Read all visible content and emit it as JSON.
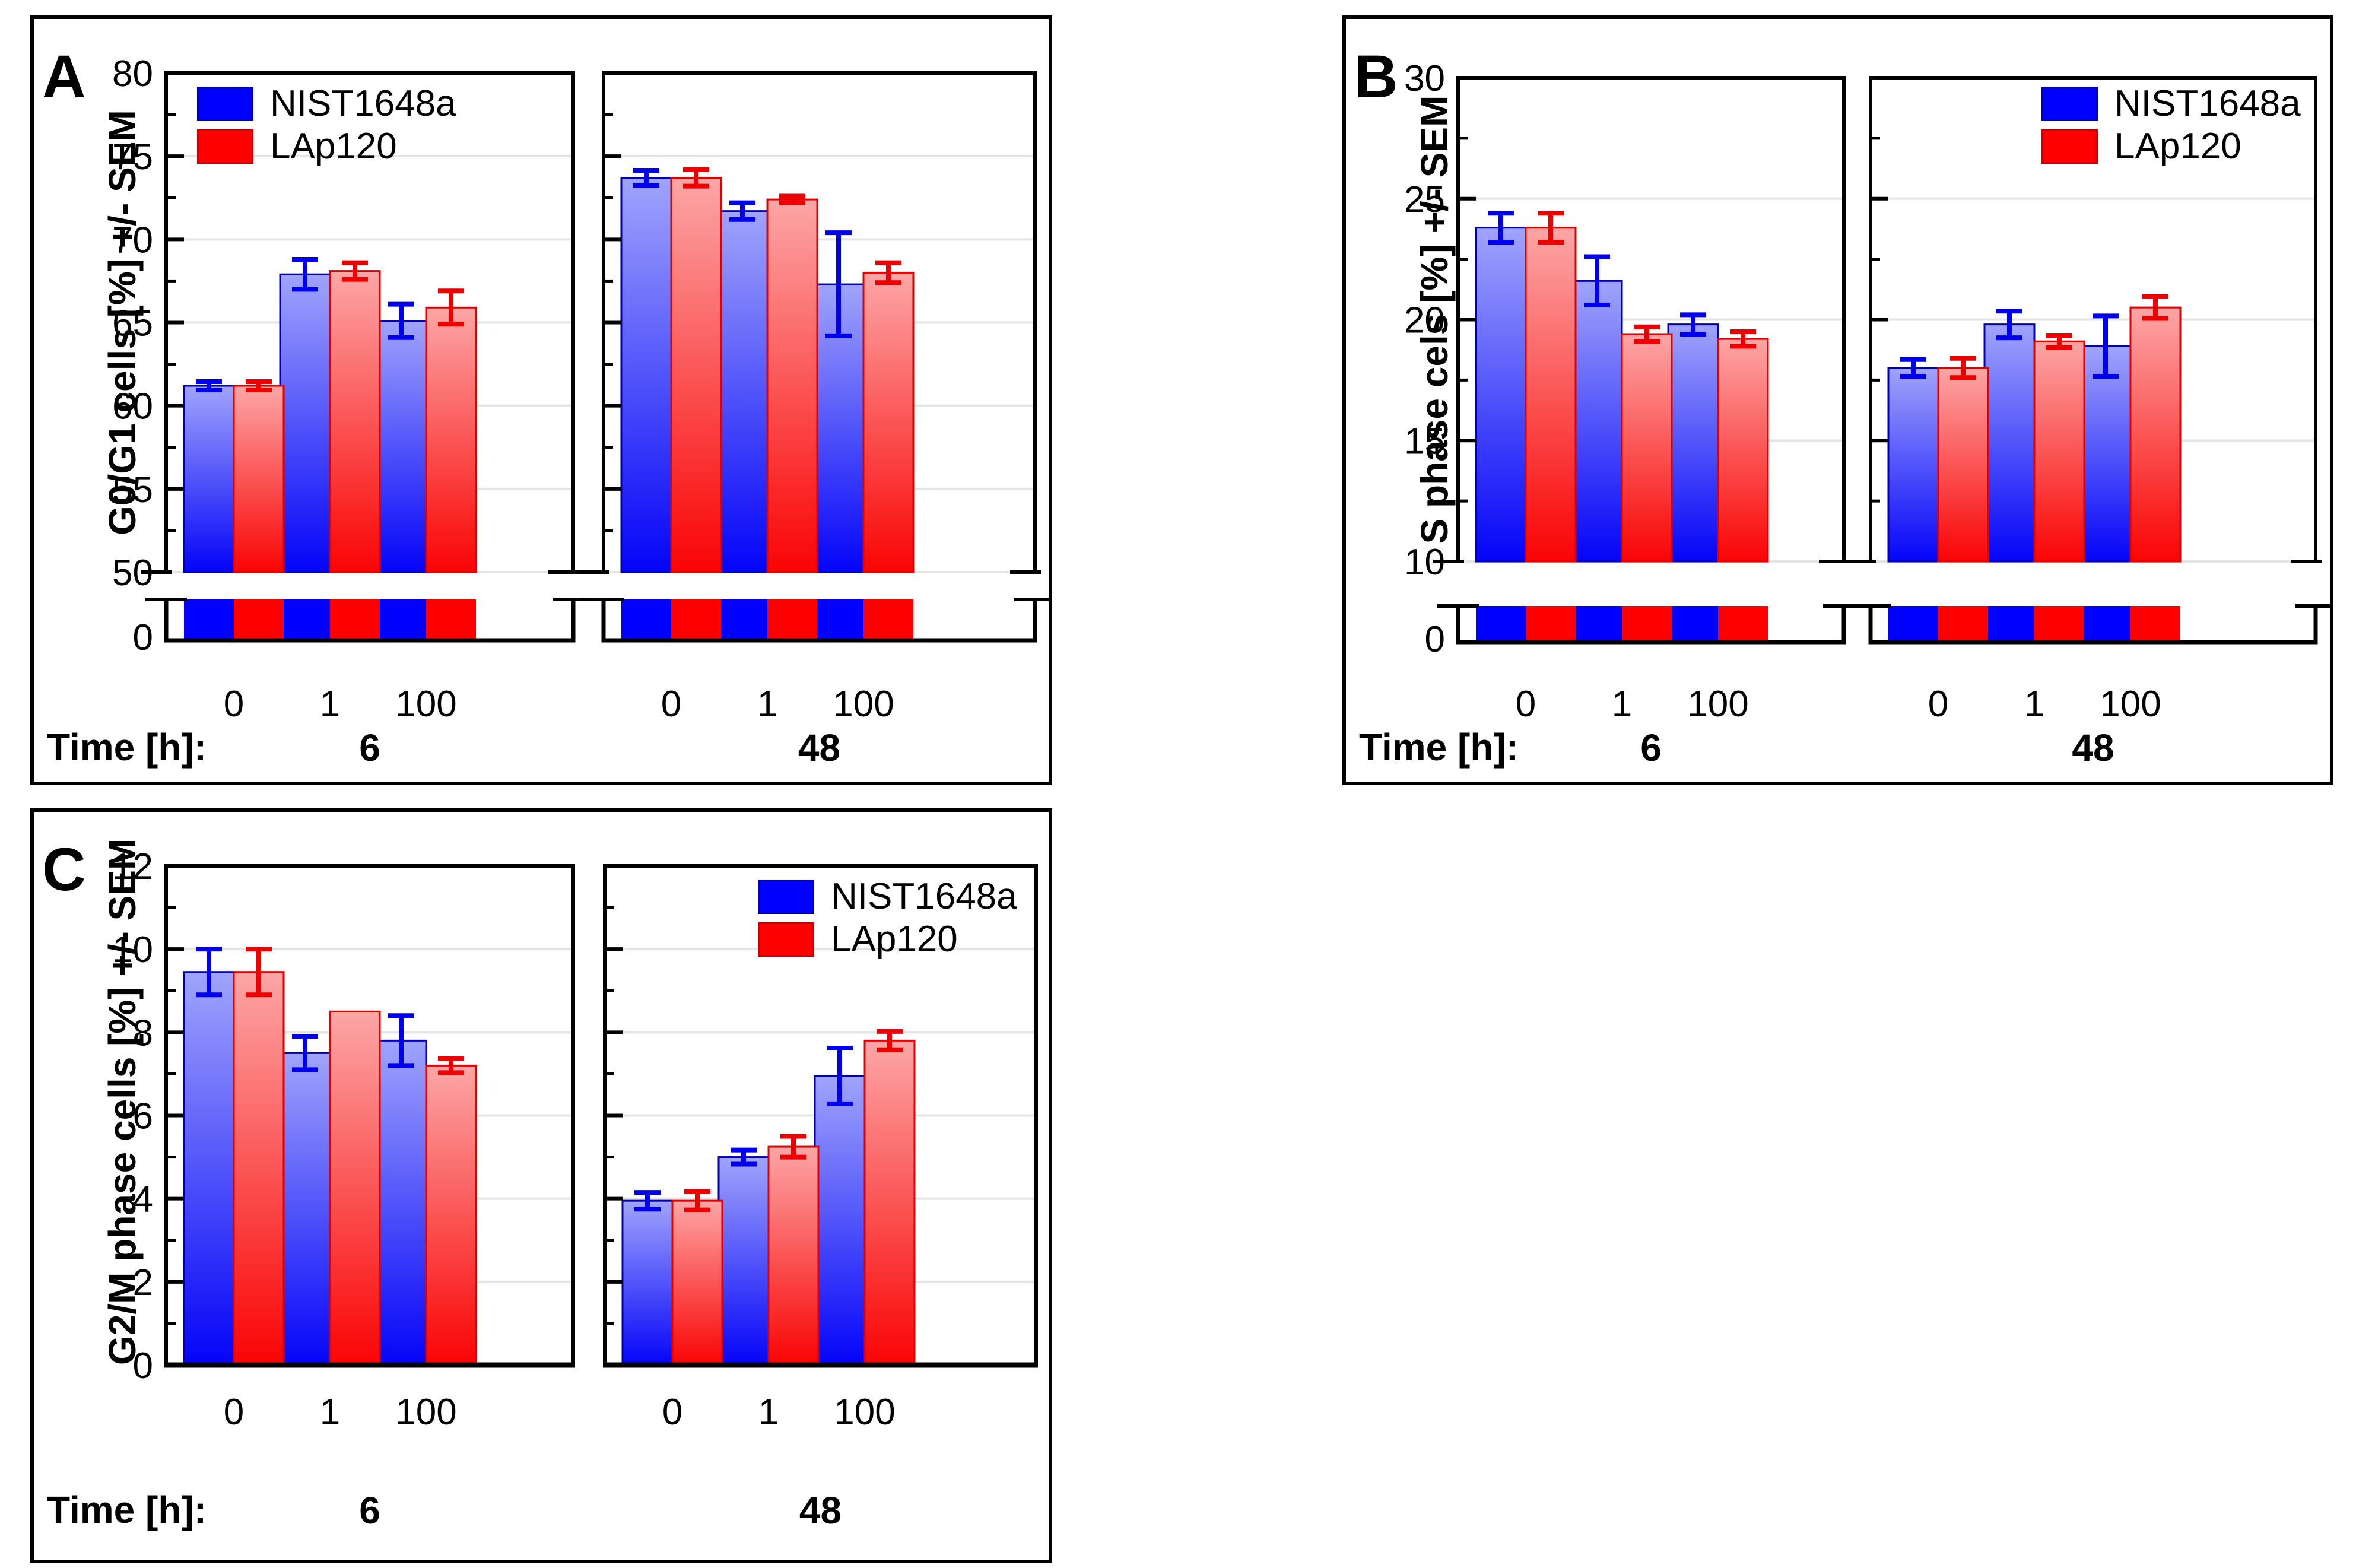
{
  "figure": {
    "time_axis_label": "Time [h]:",
    "series_legend": [
      {
        "name": "NIST1648a",
        "color": "#0000FF"
      },
      {
        "name": "LAp120",
        "color": "#FF0000"
      }
    ]
  },
  "chart_data": [
    {
      "id": "A",
      "type": "bar",
      "panel_label": "A",
      "ylabel": "G0/G1 cells [%] +/- SEM",
      "broken_axis": true,
      "ylim_main": [
        50,
        80
      ],
      "ytick_labels_main": [
        80,
        75,
        70,
        65,
        60,
        55,
        50
      ],
      "major_ticks": [
        55,
        60,
        65,
        70,
        75
      ],
      "minor_ticks": [
        52.5,
        57.5,
        62.5,
        67.5,
        72.5,
        77.5
      ],
      "gridlines": [
        50,
        55,
        60,
        65,
        70,
        75
      ],
      "break_zero_label": "0",
      "categories": [
        "0",
        "1",
        "100"
      ],
      "legend_position": "top-left",
      "subpanels": [
        {
          "time_label": "6",
          "series": [
            {
              "name": "NIST1648a",
              "values": [
                61.2,
                67.9,
                65.1
              ],
              "sem": [
                0.25,
                0.9,
                1.0
              ]
            },
            {
              "name": "LAp120",
              "values": [
                61.2,
                68.1,
                65.9
              ],
              "sem": [
                0.25,
                0.5,
                1.0
              ]
            }
          ]
        },
        {
          "time_label": "48",
          "series": [
            {
              "name": "NIST1648a",
              "values": [
                73.7,
                71.7,
                67.3
              ],
              "sem": [
                0.45,
                0.5,
                3.1
              ]
            },
            {
              "name": "LAp120",
              "values": [
                73.7,
                72.4,
                68.0
              ],
              "sem": [
                0.5,
                0.2,
                0.6
              ]
            }
          ]
        }
      ]
    },
    {
      "id": "B",
      "type": "bar",
      "panel_label": "B",
      "ylabel": "S phase cels [%] +/- SEM",
      "broken_axis": true,
      "ylim_main": [
        10,
        30
      ],
      "ytick_labels_main": [
        30,
        25,
        20,
        15,
        10
      ],
      "major_ticks": [
        15,
        20,
        25
      ],
      "minor_ticks": [
        12.5,
        17.5,
        22.5,
        27.5
      ],
      "gridlines": [
        10,
        15,
        20,
        25
      ],
      "break_zero_label": "0",
      "categories": [
        "0",
        "1",
        "100"
      ],
      "legend_position": "top-right",
      "subpanels": [
        {
          "time_label": "6",
          "series": [
            {
              "name": "NIST1648a",
              "values": [
                23.8,
                21.6,
                19.8
              ],
              "sem": [
                0.6,
                1.0,
                0.4
              ]
            },
            {
              "name": "LAp120",
              "values": [
                23.8,
                19.4,
                19.2
              ],
              "sem": [
                0.6,
                0.3,
                0.3
              ]
            }
          ]
        },
        {
          "time_label": "48",
          "series": [
            {
              "name": "NIST1648a",
              "values": [
                18.0,
                19.8,
                18.9
              ],
              "sem": [
                0.35,
                0.55,
                1.25
              ]
            },
            {
              "name": "LAp120",
              "values": [
                18.0,
                19.1,
                20.5
              ],
              "sem": [
                0.4,
                0.25,
                0.45
              ]
            }
          ]
        }
      ]
    },
    {
      "id": "C",
      "type": "bar",
      "panel_label": "C",
      "ylabel": "G2/M phase cells [%] +/- SEM",
      "broken_axis": false,
      "ylim_main": [
        0,
        12
      ],
      "ytick_labels_main": [
        12,
        10,
        8,
        6,
        4,
        2,
        0
      ],
      "major_ticks": [
        2,
        4,
        6,
        8,
        10
      ],
      "minor_ticks": [
        1,
        3,
        5,
        7,
        9,
        11
      ],
      "gridlines": [
        2,
        4,
        6,
        8,
        10
      ],
      "categories": [
        "0",
        "1",
        "100"
      ],
      "legend_position": "top-right",
      "subpanels": [
        {
          "time_label": "6",
          "series": [
            {
              "name": "NIST1648a",
              "values": [
                9.45,
                7.5,
                7.8
              ],
              "sem": [
                0.55,
                0.4,
                0.6
              ]
            },
            {
              "name": "LAp120",
              "values": [
                9.45,
                8.5,
                7.2
              ],
              "sem": [
                0.55,
                0,
                0.17
              ]
            }
          ]
        },
        {
          "time_label": "48",
          "series": [
            {
              "name": "NIST1648a",
              "values": [
                3.95,
                5.0,
                6.95
              ],
              "sem": [
                0.2,
                0.17,
                0.67
              ]
            },
            {
              "name": "LAp120",
              "values": [
                3.95,
                5.25,
                7.8
              ],
              "sem": [
                0.22,
                0.25,
                0.22
              ]
            }
          ]
        }
      ]
    }
  ],
  "styles": {
    "blue_solid": "#0000FF",
    "blue_top": "#A0A4FB",
    "blue_border": "#0000B0",
    "blue_error": "#0000EE",
    "red_solid": "#FF0000",
    "red_top": "#FCA6A6",
    "red_border": "#E00000",
    "red_error": "#EE0000",
    "gridline": "#E5E5E5",
    "axis": "#000000"
  }
}
